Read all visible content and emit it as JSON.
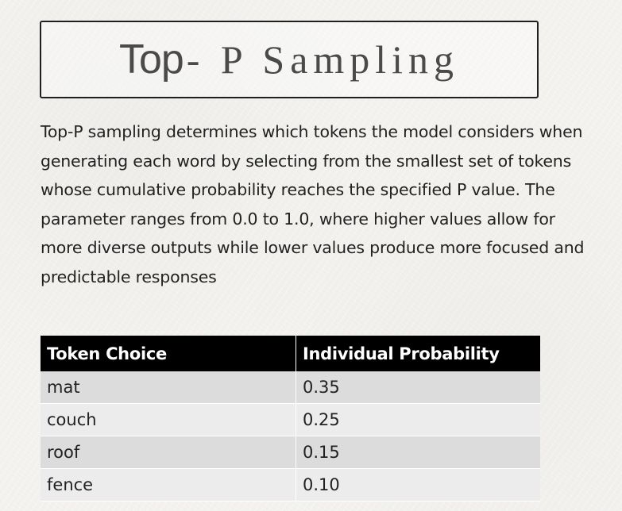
{
  "title": {
    "part1": "Top",
    "part2": "- P Sampling"
  },
  "description": "Top-P sampling determines which tokens the model considers when generating each word by selecting from the smallest set of tokens whose cumulative probability reaches the specified P value. The parameter ranges from 0.0 to 1.0, where higher values allow for more diverse outputs while lower values produce more focused and predictable responses",
  "table": {
    "headers": [
      "Token Choice",
      "Individual Probability"
    ],
    "rows": [
      [
        "mat",
        "0.35"
      ],
      [
        "couch",
        "0.25"
      ],
      [
        "roof",
        "0.15"
      ],
      [
        "fence",
        "0.10"
      ]
    ]
  }
}
